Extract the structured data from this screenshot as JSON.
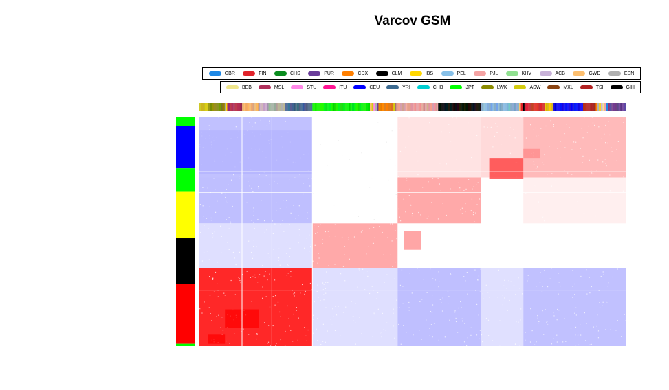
{
  "chart_data": {
    "type": "heatmap",
    "title": "Varcov GSM",
    "legend": {
      "row1": [
        {
          "label": "GBR",
          "color": "#1e88e5"
        },
        {
          "label": "FIN",
          "color": "#e0232a"
        },
        {
          "label": "CHS",
          "color": "#0a8c1e"
        },
        {
          "label": "PUR",
          "color": "#6a3d9a"
        },
        {
          "label": "CDX",
          "color": "#ff7f00"
        },
        {
          "label": "CLM",
          "color": "#000000"
        },
        {
          "label": "IBS",
          "color": "#ffd700"
        },
        {
          "label": "PEL",
          "color": "#87c0e8"
        },
        {
          "label": "PJL",
          "color": "#f4a3a3"
        },
        {
          "label": "KHV",
          "color": "#90e090"
        },
        {
          "label": "ACB",
          "color": "#c8b2d8"
        },
        {
          "label": "GWD",
          "color": "#fdbf6f"
        },
        {
          "label": "ESN",
          "color": "#b0b0b0"
        }
      ],
      "row2": [
        {
          "label": "BEB",
          "color": "#f0e68c"
        },
        {
          "label": "MSL",
          "color": "#b0305c"
        },
        {
          "label": "STU",
          "color": "#ff88e8"
        },
        {
          "label": "ITU",
          "color": "#ff1493"
        },
        {
          "label": "CEU",
          "color": "#0000ff"
        },
        {
          "label": "YRI",
          "color": "#3c6a90"
        },
        {
          "label": "CHB",
          "color": "#00ced1"
        },
        {
          "label": "JPT",
          "color": "#00ff00"
        },
        {
          "label": "LWK",
          "color": "#8b8b00"
        },
        {
          "label": "ASW",
          "color": "#d4cc10"
        },
        {
          "label": "MXL",
          "color": "#8b4513"
        },
        {
          "label": "TSI",
          "color": "#b22222"
        },
        {
          "label": "GIH",
          "color": "#000000"
        }
      ]
    },
    "block_boundaries": [
      0,
      0.265,
      0.465,
      0.66,
      0.76,
      1.0
    ],
    "row_annotation": [
      {
        "color": "#00ff00",
        "span": [
          0,
          0.04
        ]
      },
      {
        "color": "#0000ff",
        "span": [
          0.04,
          0.225
        ]
      },
      {
        "color": "#00ff00",
        "span": [
          0.225,
          0.27
        ]
      },
      {
        "color": "#00ff00",
        "span": [
          0.27,
          0.325
        ]
      },
      {
        "color": "#ffff00",
        "span": [
          0.325,
          0.53
        ]
      },
      {
        "color": "#000000",
        "span": [
          0.53,
          0.73
        ]
      },
      {
        "color": "#ff0000",
        "span": [
          0.73,
          0.99
        ]
      },
      {
        "color": "#00ff00",
        "span": [
          0.99,
          1.0
        ]
      }
    ],
    "column_annotation": [
      {
        "color": "#d4cc10",
        "span": [
          0,
          0.02
        ]
      },
      {
        "color": "#8b8b00",
        "span": [
          0.02,
          0.06
        ]
      },
      {
        "color": "#b0305c",
        "span": [
          0.065,
          0.1
        ]
      },
      {
        "color": "#fdbf6f",
        "span": [
          0.1,
          0.14
        ]
      },
      {
        "color": "#c8b2d8",
        "span": [
          0.14,
          0.16
        ]
      },
      {
        "color": "#b0b0b0",
        "span": [
          0.16,
          0.2
        ]
      },
      {
        "color": "#3c6a90",
        "span": [
          0.2,
          0.265
        ]
      },
      {
        "color": "#00ff00",
        "span": [
          0.265,
          0.4
        ]
      },
      {
        "color": "#ff7f00",
        "span": [
          0.42,
          0.455
        ]
      },
      {
        "color": "#f4a3a3",
        "span": [
          0.46,
          0.56
        ]
      },
      {
        "color": "#000000",
        "span": [
          0.56,
          0.66
        ]
      },
      {
        "color": "#87c0e8",
        "span": [
          0.66,
          0.75
        ]
      },
      {
        "color": "#e0232a",
        "span": [
          0.765,
          0.81
        ]
      },
      {
        "color": "#ffd700",
        "span": [
          0.81,
          0.83
        ]
      },
      {
        "color": "#0000ff",
        "span": [
          0.83,
          0.9
        ]
      },
      {
        "color": "#b22222",
        "span": [
          0.9,
          0.93
        ]
      },
      {
        "color": "#6a3d9a",
        "span": [
          0.96,
          1.0
        ]
      }
    ],
    "cells": [
      {
        "r": 0,
        "c": 0,
        "color": "#b3b3ff",
        "density": 0.85
      },
      {
        "r": 0,
        "c": 1,
        "color": "#ffffff",
        "density": 0.0
      },
      {
        "r": 0,
        "c": 2,
        "color": "#ffcccc",
        "density": 0.35
      },
      {
        "r": 0,
        "c": 3,
        "color": "#ffcccc",
        "density": 0.7
      },
      {
        "r": 0,
        "c": 4,
        "color": "#ffaaaa",
        "density": 0.85
      },
      {
        "r": 1,
        "c": 0,
        "color": "#b3b3ff",
        "density": 0.9
      },
      {
        "r": 1,
        "c": 1,
        "color": "#ffffff",
        "density": 0.0
      },
      {
        "r": 1,
        "c": 2,
        "color": "#ff9999",
        "density": 0.9
      },
      {
        "r": 1,
        "c": 3,
        "color": "#ffffff",
        "density": 0.05
      },
      {
        "r": 1,
        "c": 4,
        "color": "#ffdddd",
        "density": 0.2
      },
      {
        "r": 2,
        "c": 0,
        "color": "#d8d8ff",
        "density": 0.85
      },
      {
        "r": 2,
        "c": 1,
        "color": "#ff9999",
        "density": 0.9
      },
      {
        "r": 2,
        "c": 2,
        "color": "#ffffff",
        "density": 0.02
      },
      {
        "r": 2,
        "c": 3,
        "color": "#ffffff",
        "density": 0.02
      },
      {
        "r": 2,
        "c": 4,
        "color": "#ffffff",
        "density": 0.03
      },
      {
        "r": 3,
        "c": 0,
        "color": "#ff0000",
        "density": 0.9
      },
      {
        "r": 3,
        "c": 1,
        "color": "#d8d8ff",
        "density": 0.85
      },
      {
        "r": 3,
        "c": 2,
        "color": "#b3b3ff",
        "density": 0.9
      },
      {
        "r": 3,
        "c": 3,
        "color": "#d8d8ff",
        "density": 0.8
      },
      {
        "r": 3,
        "c": 4,
        "color": "#b3b3ff",
        "density": 0.85
      },
      {
        "r": 4,
        "c": 0,
        "color": "#ff0000",
        "density": 0.9
      },
      {
        "r": 4,
        "c": 1,
        "color": "#d8d8ff",
        "density": 0.85
      },
      {
        "r": 4,
        "c": 2,
        "color": "#b3b3ff",
        "density": 0.9
      },
      {
        "r": 4,
        "c": 3,
        "color": "#d8d8ff",
        "density": 0.8
      },
      {
        "r": 4,
        "c": 4,
        "color": "#b3b3ff",
        "density": 0.85
      }
    ],
    "accents": [
      {
        "r0": 0.06,
        "r1": 0.25,
        "c0": 0.0,
        "c1": 0.265,
        "color": "#b3b3ff"
      },
      {
        "r0": 0.18,
        "r1": 0.27,
        "c0": 0.68,
        "c1": 0.76,
        "color": "#ff3333"
      },
      {
        "r0": 0.14,
        "r1": 0.18,
        "c0": 0.76,
        "c1": 0.8,
        "color": "#ff8888"
      },
      {
        "r0": 0.84,
        "r1": 0.92,
        "c0": 0.06,
        "c1": 0.14,
        "color": "#ff0000"
      },
      {
        "r0": 0.95,
        "r1": 0.99,
        "c0": 0.02,
        "c1": 0.06,
        "color": "#ff0000"
      },
      {
        "r0": 0.5,
        "r1": 0.58,
        "c0": 0.48,
        "c1": 0.52,
        "color": "#ff8888"
      }
    ]
  }
}
